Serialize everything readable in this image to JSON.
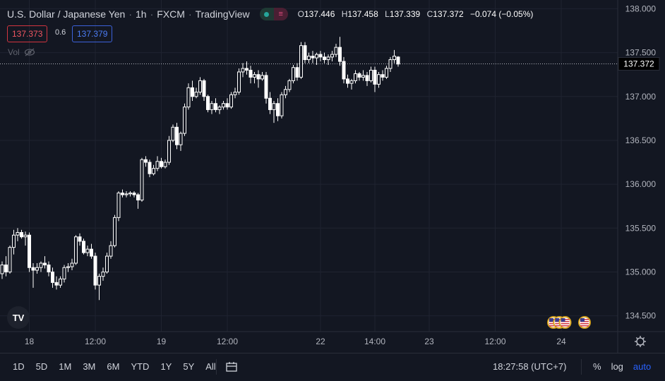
{
  "header": {
    "symbol": "U.S. Dollar / Japanese Yen",
    "interval": "1h",
    "exchange": "FXCM",
    "source": "TradingView",
    "open_label": "O",
    "open": "137.446",
    "high_label": "H",
    "high": "137.458",
    "low_label": "L",
    "low": "137.339",
    "close_label": "C",
    "close": "137.372",
    "change": "−0.074 (−0.05%)"
  },
  "quote": {
    "sell": "137.373",
    "spread": "0.6",
    "buy": "137.379"
  },
  "volume_label": "Vol",
  "logo_text": "TV",
  "chart_data": {
    "type": "candlestick",
    "y_axis": {
      "side": "right",
      "ylim": [
        134.32,
        138.1
      ],
      "ticks": [
        138.0,
        137.5,
        137.0,
        136.5,
        136.0,
        135.5,
        135.0,
        134.5
      ],
      "tick_labels": [
        "138.000",
        "137.500",
        "137.000",
        "136.500",
        "136.000",
        "135.500",
        "135.000",
        "134.500"
      ]
    },
    "x_axis": {
      "tick_labels": [
        "18",
        "12:00",
        "19",
        "12:00",
        "22",
        "14:00",
        "23",
        "12:00",
        "24"
      ],
      "tick_positions": [
        7,
        24,
        41,
        58,
        82,
        96,
        110,
        127,
        144
      ]
    },
    "last_price": 137.372,
    "last_price_label": "137.372",
    "grid": true,
    "candles": [
      [
        134.98,
        135.12,
        134.92,
        135.08
      ],
      [
        135.08,
        135.18,
        134.95,
        135.0
      ],
      [
        135.0,
        135.3,
        134.98,
        135.28
      ],
      [
        135.28,
        135.48,
        135.2,
        135.42
      ],
      [
        135.42,
        135.5,
        135.35,
        135.45
      ],
      [
        135.45,
        135.48,
        135.38,
        135.4
      ],
      [
        135.4,
        135.46,
        135.3,
        135.42
      ],
      [
        135.42,
        135.45,
        135.0,
        135.05
      ],
      [
        135.05,
        135.1,
        134.82,
        135.02
      ],
      [
        135.02,
        135.1,
        134.98,
        135.05
      ],
      [
        135.05,
        135.12,
        135.0,
        135.1
      ],
      [
        135.1,
        135.18,
        135.04,
        135.08
      ],
      [
        135.08,
        135.12,
        134.95,
        135.0
      ],
      [
        135.0,
        135.05,
        134.82,
        134.88
      ],
      [
        134.88,
        134.95,
        134.8,
        134.85
      ],
      [
        134.85,
        134.95,
        134.82,
        134.92
      ],
      [
        134.92,
        135.08,
        134.88,
        135.05
      ],
      [
        135.05,
        135.1,
        135.0,
        135.06
      ],
      [
        135.06,
        135.15,
        135.02,
        135.1
      ],
      [
        135.1,
        135.42,
        135.08,
        135.4
      ],
      [
        135.4,
        135.44,
        135.3,
        135.35
      ],
      [
        135.35,
        135.38,
        135.2,
        135.22
      ],
      [
        135.22,
        135.3,
        135.18,
        135.26
      ],
      [
        135.26,
        135.32,
        135.15,
        135.18
      ],
      [
        135.18,
        135.22,
        134.8,
        134.85
      ],
      [
        134.85,
        134.98,
        134.68,
        134.95
      ],
      [
        134.95,
        135.05,
        134.9,
        135.0
      ],
      [
        135.0,
        135.22,
        134.98,
        135.18
      ],
      [
        135.18,
        135.35,
        135.15,
        135.3
      ],
      [
        135.3,
        135.65,
        135.28,
        135.62
      ],
      [
        135.62,
        135.92,
        135.58,
        135.9
      ],
      [
        135.9,
        135.94,
        135.85,
        135.88
      ],
      [
        135.88,
        135.92,
        135.85,
        135.89
      ],
      [
        135.89,
        135.92,
        135.86,
        135.9
      ],
      [
        135.9,
        135.92,
        135.85,
        135.88
      ],
      [
        135.88,
        135.9,
        135.72,
        135.82
      ],
      [
        135.82,
        136.3,
        135.8,
        136.28
      ],
      [
        136.28,
        136.32,
        136.2,
        136.25
      ],
      [
        136.25,
        136.28,
        136.08,
        136.12
      ],
      [
        136.12,
        136.22,
        136.1,
        136.18
      ],
      [
        136.18,
        136.32,
        136.15,
        136.26
      ],
      [
        136.26,
        136.3,
        136.18,
        136.2
      ],
      [
        136.2,
        136.28,
        136.18,
        136.25
      ],
      [
        136.25,
        136.55,
        136.22,
        136.5
      ],
      [
        136.5,
        136.68,
        136.48,
        136.65
      ],
      [
        136.65,
        136.7,
        136.4,
        136.45
      ],
      [
        136.45,
        136.6,
        136.38,
        136.58
      ],
      [
        136.58,
        136.92,
        136.55,
        136.88
      ],
      [
        136.88,
        137.15,
        136.85,
        137.1
      ],
      [
        137.1,
        137.18,
        136.95,
        137.0
      ],
      [
        137.0,
        137.1,
        136.98,
        137.05
      ],
      [
        137.05,
        137.22,
        137.02,
        137.18
      ],
      [
        137.18,
        137.2,
        136.95,
        137.0
      ],
      [
        137.0,
        137.02,
        136.82,
        136.85
      ],
      [
        136.85,
        136.95,
        136.8,
        136.92
      ],
      [
        136.92,
        136.98,
        136.82,
        136.85
      ],
      [
        136.85,
        136.9,
        136.8,
        136.88
      ],
      [
        136.88,
        136.95,
        136.85,
        136.92
      ],
      [
        136.92,
        136.98,
        136.85,
        136.88
      ],
      [
        136.88,
        137.05,
        136.86,
        137.02
      ],
      [
        137.02,
        137.1,
        136.98,
        137.05
      ],
      [
        137.05,
        137.32,
        137.02,
        137.28
      ],
      [
        137.28,
        137.38,
        137.22,
        137.32
      ],
      [
        137.32,
        137.4,
        137.25,
        137.3
      ],
      [
        137.3,
        137.35,
        137.15,
        137.22
      ],
      [
        137.22,
        137.28,
        137.15,
        137.25
      ],
      [
        137.25,
        137.3,
        137.1,
        137.2
      ],
      [
        137.2,
        137.28,
        137.18,
        137.24
      ],
      [
        137.24,
        137.28,
        136.92,
        136.98
      ],
      [
        136.98,
        137.05,
        136.8,
        136.85
      ],
      [
        136.85,
        136.95,
        136.7,
        136.92
      ],
      [
        136.92,
        136.98,
        136.72,
        136.78
      ],
      [
        136.78,
        137.05,
        136.75,
        137.02
      ],
      [
        137.02,
        137.12,
        136.98,
        137.08
      ],
      [
        137.08,
        137.2,
        137.05,
        137.18
      ],
      [
        137.18,
        137.36,
        137.15,
        137.33
      ],
      [
        137.33,
        137.38,
        137.18,
        137.22
      ],
      [
        137.22,
        137.62,
        137.2,
        137.58
      ],
      [
        137.58,
        137.62,
        137.38,
        137.42
      ],
      [
        137.42,
        137.5,
        137.38,
        137.46
      ],
      [
        137.46,
        137.52,
        137.38,
        137.44
      ],
      [
        137.44,
        137.5,
        137.36,
        137.48
      ],
      [
        137.48,
        137.52,
        137.4,
        137.45
      ],
      [
        137.45,
        137.5,
        137.38,
        137.42
      ],
      [
        137.42,
        137.48,
        137.36,
        137.45
      ],
      [
        137.45,
        137.52,
        137.4,
        137.48
      ],
      [
        137.48,
        137.6,
        137.45,
        137.56
      ],
      [
        137.56,
        137.68,
        137.35,
        137.4
      ],
      [
        137.4,
        137.45,
        137.15,
        137.2
      ],
      [
        137.2,
        137.25,
        137.1,
        137.15
      ],
      [
        137.15,
        137.2,
        137.08,
        137.18
      ],
      [
        137.18,
        137.3,
        137.15,
        137.26
      ],
      [
        137.26,
        137.28,
        137.18,
        137.22
      ],
      [
        137.22,
        137.3,
        137.18,
        137.24
      ],
      [
        137.24,
        137.28,
        137.12,
        137.18
      ],
      [
        137.18,
        137.34,
        137.16,
        137.3
      ],
      [
        137.3,
        137.34,
        137.05,
        137.14
      ],
      [
        137.14,
        137.28,
        137.1,
        137.25
      ],
      [
        137.25,
        137.3,
        137.18,
        137.22
      ],
      [
        137.22,
        137.35,
        137.2,
        137.32
      ],
      [
        137.32,
        137.45,
        137.28,
        137.42
      ],
      [
        137.42,
        137.53,
        137.38,
        137.46
      ],
      [
        137.45,
        137.46,
        137.34,
        137.37
      ]
    ],
    "events": [
      {
        "x": 142,
        "label": "US"
      },
      {
        "x": 143.5,
        "label": "US"
      },
      {
        "x": 145,
        "label": "US"
      },
      {
        "x": 150,
        "label": "US"
      }
    ]
  },
  "timeframes": [
    "1D",
    "5D",
    "1M",
    "3M",
    "6M",
    "YTD",
    "1Y",
    "5Y",
    "All"
  ],
  "clock": "18:27:58 (UTC+7)",
  "scale_buttons": {
    "percent": "%",
    "log": "log",
    "auto": "auto"
  },
  "colors": {
    "background": "#131722",
    "grid": "#1f2330",
    "candle": "#ffffff",
    "last_price_line": "#b2b5be",
    "accent": "#2962ff"
  }
}
